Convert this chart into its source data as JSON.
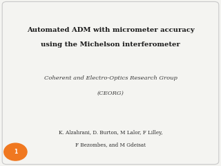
{
  "bg_color": "#f4f4f1",
  "border_color": "#c8c8c8",
  "title_line1": "Automated ADM with micrometer accuracy",
  "title_line2": "using the Michelson interferometer",
  "subtitle_line1": "Coherent and Electro-Optics Research Group",
  "subtitle_line2": "(CEORG)",
  "authors_line1": "K. Alzahrani, D. Burton, M Lalor, F Lilley,",
  "authors_line2": "F Bezombes, and M Gdeisat",
  "page_number": "1",
  "page_circle_color": "#f07820",
  "page_number_color": "#ffffff",
  "title_color": "#1a1a1a",
  "subtitle_color": "#3a3a3a",
  "authors_color": "#2a2a2a",
  "title_fontsize": 7.2,
  "subtitle_fontsize": 6.0,
  "authors_fontsize": 5.2
}
